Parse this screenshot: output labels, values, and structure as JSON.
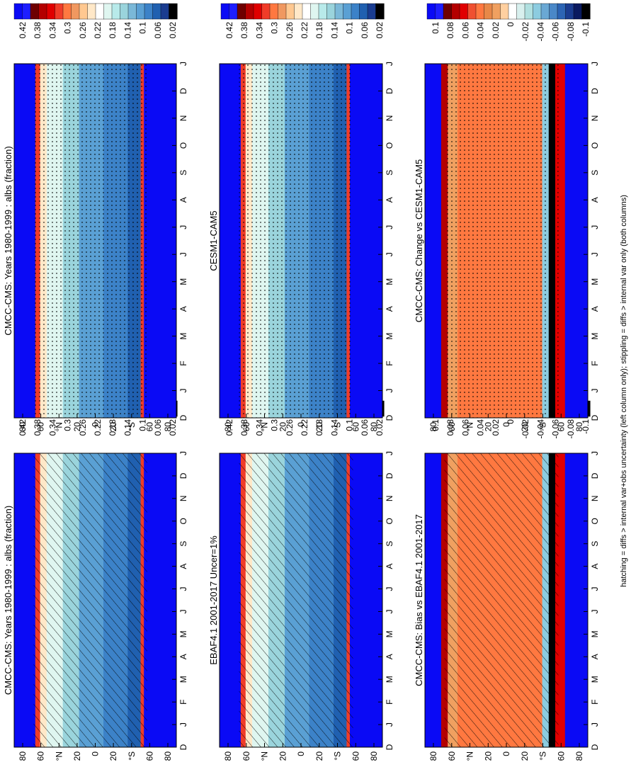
{
  "footnote": "hatching = diffs > internal var+obs uncertainty (left column only); stippling = diffs > internal var only (both columns)",
  "x_ticks": [
    "D",
    "J",
    "F",
    "M",
    "A",
    "M",
    "J",
    "J",
    "A",
    "S",
    "O",
    "N",
    "D",
    "J"
  ],
  "y_ticks": [
    "80",
    "60",
    "°N",
    "20",
    "0",
    "20",
    "°S",
    "60",
    "80"
  ],
  "palettes": {
    "field": [
      "#0a0af5",
      "#1e1eff",
      "#6e0000",
      "#b40000",
      "#e00000",
      "#f03c28",
      "#ff7840",
      "#f09860",
      "#ffc890",
      "#ffe8c8",
      "#ffffff",
      "#dff6f0",
      "#b8eaea",
      "#9ad4dc",
      "#7ab8d8",
      "#5aa0d4",
      "#3c82c8",
      "#2060b0",
      "#1a3c90",
      "#000000"
    ],
    "diff": [
      "#0a0af5",
      "#1e1eff",
      "#6e0000",
      "#b40000",
      "#e00000",
      "#f05030",
      "#ff7840",
      "#e88848",
      "#f0a060",
      "#ffd0a0",
      "#ffffff",
      "#d8f0ee",
      "#b0e0e0",
      "#8ccce0",
      "#6aa8d4",
      "#4a88c8",
      "#2c64b4",
      "#1a3c90",
      "#0a1a60",
      "#000000"
    ]
  },
  "chart_data": [
    {
      "type": "heatmap",
      "panel": "top-left",
      "title": "CMCC-CMS: Years 1980-1999 : albs (fraction)",
      "x": [
        "D",
        "J",
        "F",
        "M",
        "A",
        "M",
        "J",
        "J",
        "A",
        "S",
        "O",
        "N",
        "D",
        "J"
      ],
      "y": [
        90,
        60,
        30,
        0,
        -30,
        -60,
        -90
      ],
      "colorbar": {
        "labels": [
          "0.42",
          "0.38",
          "0.34",
          "0.3",
          "0.26",
          "0.22",
          "0.18",
          "0.14",
          "0.1",
          "0.06",
          "0.02"
        ],
        "palette": "field"
      },
      "pattern": "hatch"
    },
    {
      "type": "heatmap",
      "panel": "top-right",
      "title": "CMCC-CMS: Years 1980-1999 : albs (fraction)",
      "x": [
        "D",
        "J",
        "F",
        "M",
        "A",
        "M",
        "J",
        "J",
        "A",
        "S",
        "O",
        "N",
        "D",
        "J"
      ],
      "y": [
        90,
        60,
        30,
        0,
        -30,
        -60,
        -90
      ],
      "colorbar": {
        "labels": [
          "0.42",
          "0.38",
          "0.34",
          "0.3",
          "0.26",
          "0.22",
          "0.18",
          "0.14",
          "0.1",
          "0.06",
          "0.02"
        ],
        "palette": "field"
      },
      "pattern": "stipple"
    },
    {
      "type": "heatmap",
      "panel": "middle-left",
      "title": "EBAF4.1 2001-2017 Uncer=1%",
      "x": [
        "D",
        "J",
        "F",
        "M",
        "A",
        "M",
        "J",
        "J",
        "A",
        "S",
        "O",
        "N",
        "D",
        "J"
      ],
      "y": [
        90,
        60,
        30,
        0,
        -30,
        -60,
        -90
      ],
      "colorbar": {
        "labels": [
          "0.42",
          "0.38",
          "0.34",
          "0.3",
          "0.26",
          "0.22",
          "0.18",
          "0.14",
          "0.1",
          "0.06",
          "0.02"
        ],
        "palette": "field"
      },
      "pattern": "hatch"
    },
    {
      "type": "heatmap",
      "panel": "middle-right",
      "title": "CESM1-CAM5",
      "x": [
        "D",
        "J",
        "F",
        "M",
        "A",
        "M",
        "J",
        "J",
        "A",
        "S",
        "O",
        "N",
        "D",
        "J"
      ],
      "y": [
        90,
        60,
        30,
        0,
        -30,
        -60,
        -90
      ],
      "colorbar": {
        "labels": [
          "0.42",
          "0.38",
          "0.34",
          "0.3",
          "0.26",
          "0.22",
          "0.18",
          "0.14",
          "0.1",
          "0.06",
          "0.02"
        ],
        "palette": "field"
      },
      "pattern": "stipple"
    },
    {
      "type": "heatmap",
      "panel": "bottom-left",
      "title": "CMCC-CMS: Bias vs EBAF4.1 2001-2017",
      "x": [
        "D",
        "J",
        "F",
        "M",
        "A",
        "M",
        "J",
        "J",
        "A",
        "S",
        "O",
        "N",
        "D",
        "J"
      ],
      "y": [
        90,
        60,
        30,
        0,
        -30,
        -60,
        -90
      ],
      "colorbar": {
        "labels": [
          "0.1",
          "0.08",
          "0.06",
          "0.04",
          "0.02",
          "0",
          "-0.02",
          "-0.04",
          "-0.06",
          "-0.08",
          "-0.1"
        ],
        "palette": "diff"
      },
      "pattern": "hatch"
    },
    {
      "type": "heatmap",
      "panel": "bottom-right",
      "title": "CMCC-CMS: Change vs CESM1-CAM5",
      "x": [
        "D",
        "J",
        "F",
        "M",
        "A",
        "M",
        "J",
        "J",
        "A",
        "S",
        "O",
        "N",
        "D",
        "J"
      ],
      "y": [
        90,
        60,
        30,
        0,
        -30,
        -60,
        -90
      ],
      "colorbar": {
        "labels": [
          "0.1",
          "0.08",
          "0.06",
          "0.04",
          "0.02",
          "0",
          "-0.02",
          "-0.04",
          "-0.06",
          "-0.08",
          "-0.1"
        ],
        "palette": "diff"
      },
      "pattern": "stipple"
    }
  ]
}
